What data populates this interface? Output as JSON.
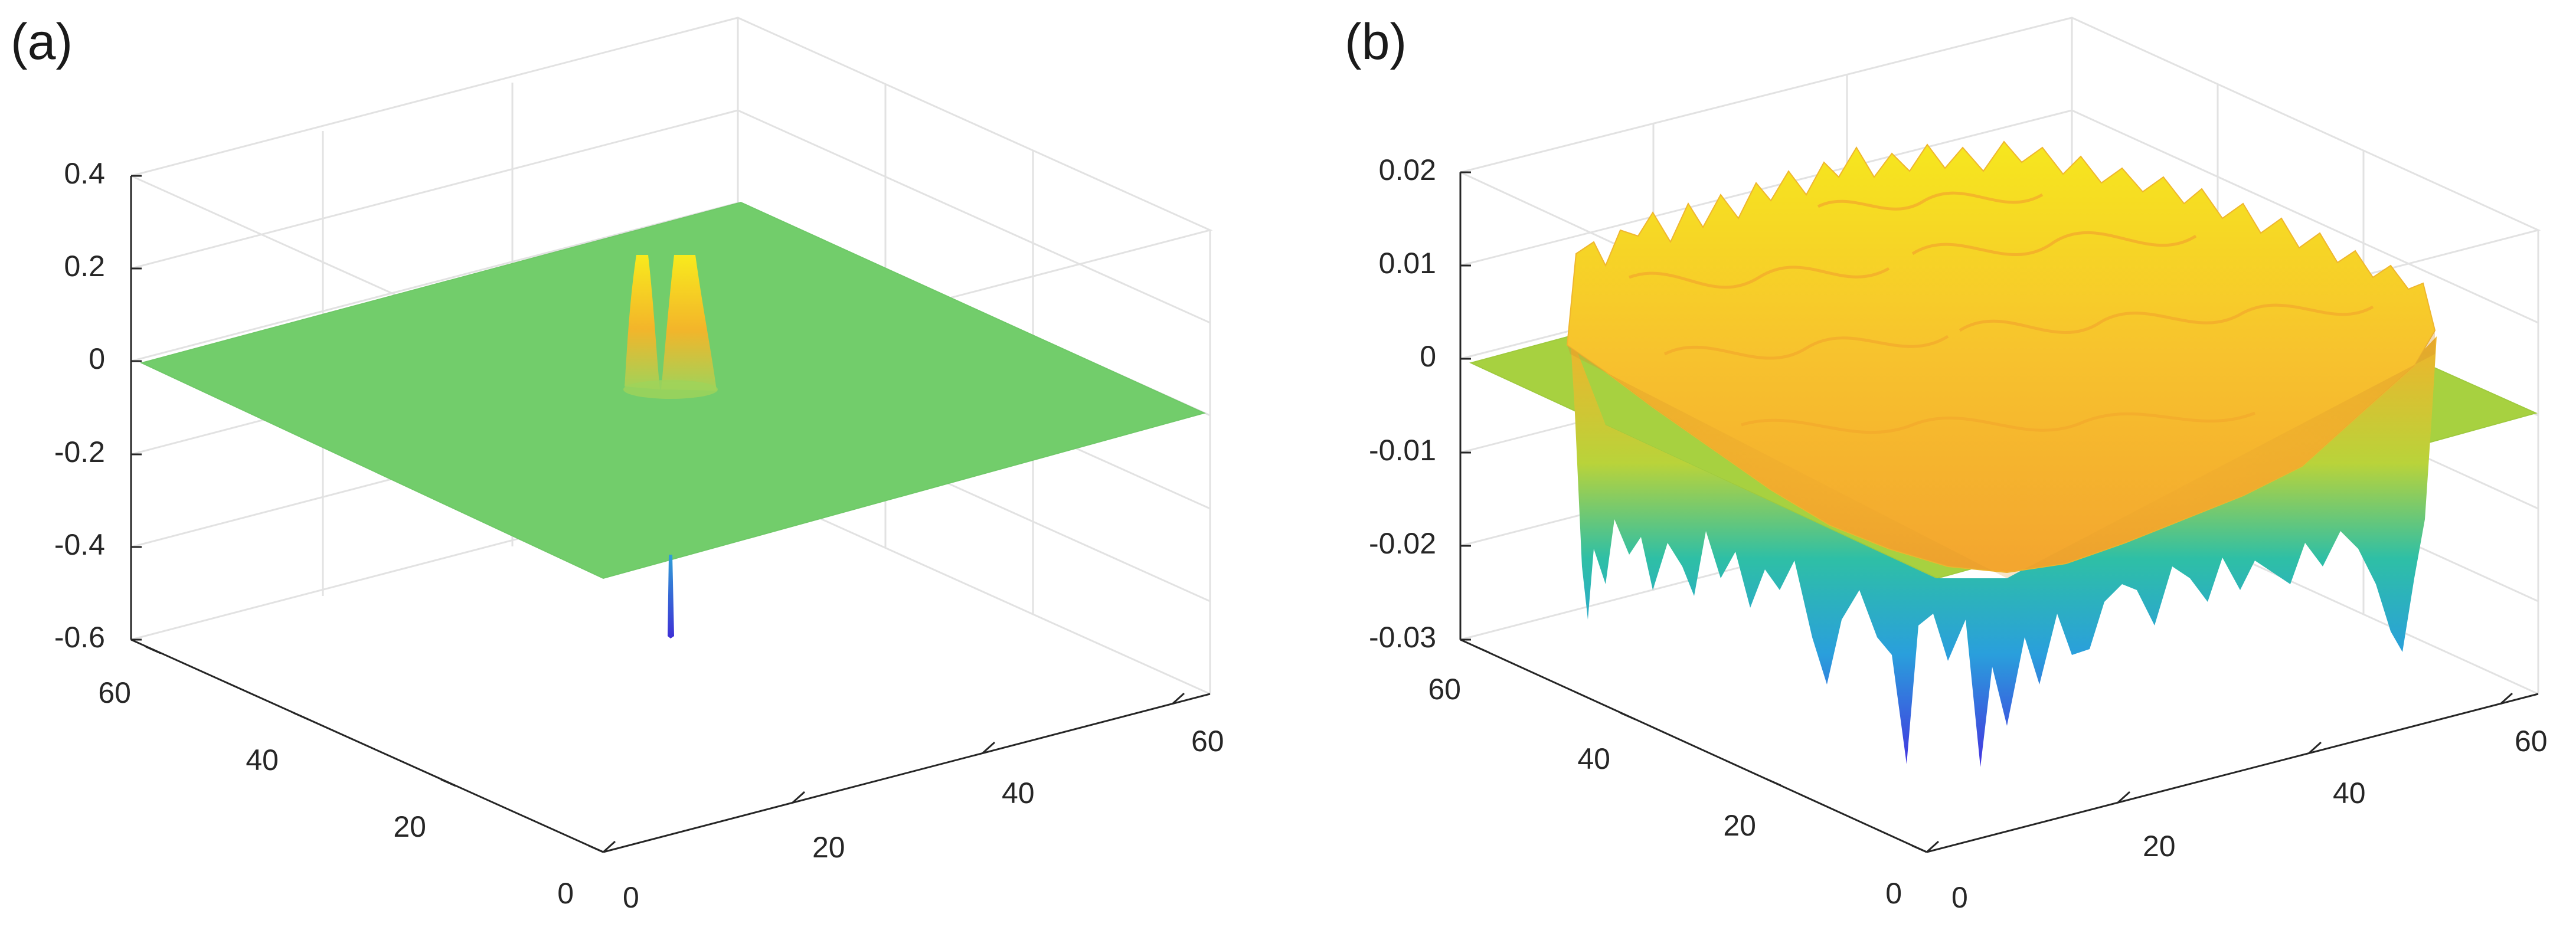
{
  "figure": {
    "panel_labels": [
      "(a)",
      "(b)"
    ]
  },
  "chart_data": [
    {
      "type": "surface",
      "panel": "(a)",
      "title": "",
      "xlabel": "",
      "ylabel": "",
      "zlabel": "",
      "xlim": [
        0,
        64
      ],
      "ylim": [
        0,
        64
      ],
      "zlim": [
        -0.6,
        0.4
      ],
      "x_ticks": [
        0,
        20,
        40,
        60
      ],
      "y_ticks": [
        0,
        20,
        40,
        60
      ],
      "z_ticks": [
        0.4,
        0.2,
        0,
        -0.2,
        -0.4,
        -0.6
      ],
      "x_tick_labels": [
        "0",
        "20",
        "40",
        "60"
      ],
      "y_tick_labels": [
        "0",
        "20",
        "40",
        "60"
      ],
      "z_tick_labels": [
        "0.4",
        "0.2",
        "0",
        "-0.2",
        "-0.4",
        "-0.6"
      ],
      "grid": true,
      "colormap": "parula",
      "baseline_value": 0,
      "features": [
        {
          "kind": "peak",
          "x": 31,
          "y": 28,
          "z": 0.22
        },
        {
          "kind": "peak",
          "x": 33,
          "y": 29,
          "z": 0.22
        },
        {
          "kind": "dip",
          "x": 33,
          "y": 31,
          "z": -0.58
        }
      ]
    },
    {
      "type": "surface",
      "panel": "(b)",
      "title": "",
      "xlabel": "",
      "ylabel": "",
      "zlabel": "",
      "xlim": [
        0,
        64
      ],
      "ylim": [
        0,
        64
      ],
      "zlim": [
        -0.03,
        0.02
      ],
      "x_ticks": [
        0,
        20,
        40,
        60
      ],
      "y_ticks": [
        0,
        20,
        40,
        60
      ],
      "z_ticks": [
        0.02,
        0.01,
        0,
        -0.01,
        -0.02,
        -0.03
      ],
      "x_tick_labels": [
        "0",
        "20",
        "40",
        "60"
      ],
      "y_tick_labels": [
        "0",
        "20",
        "40",
        "60"
      ],
      "z_tick_labels": [
        "0.02",
        "0.01",
        "0",
        "-0.01",
        "-0.02",
        "-0.03"
      ],
      "grid": true,
      "colormap": "parula",
      "baseline_value": 0,
      "active_region": {
        "x": [
          8,
          56
        ],
        "y": [
          8,
          56
        ]
      },
      "top_value_range": [
        0.005,
        0.02
      ],
      "bottom_value_range": [
        -0.03,
        -0.015
      ]
    }
  ]
}
